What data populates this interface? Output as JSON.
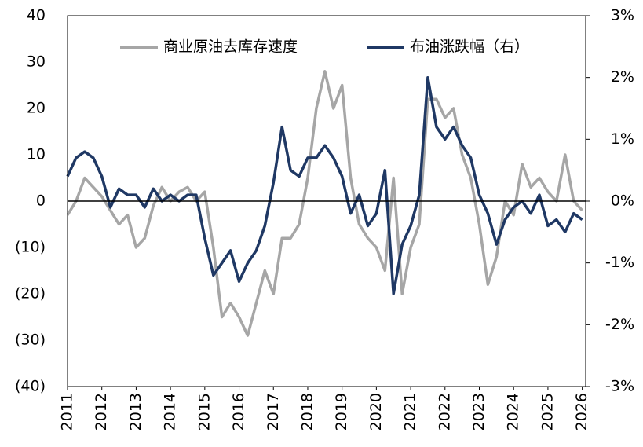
{
  "chart_data": {
    "type": "line",
    "x": [
      2011,
      2011.25,
      2011.5,
      2011.75,
      2012,
      2012.25,
      2012.5,
      2012.75,
      2013,
      2013.25,
      2013.5,
      2013.75,
      2014,
      2014.25,
      2014.5,
      2014.75,
      2015,
      2015.25,
      2015.5,
      2015.75,
      2016,
      2016.25,
      2016.5,
      2016.75,
      2017,
      2017.25,
      2017.5,
      2017.75,
      2018,
      2018.25,
      2018.5,
      2018.75,
      2019,
      2019.25,
      2019.5,
      2019.75,
      2020,
      2020.25,
      2020.5,
      2020.75,
      2021,
      2021.25,
      2021.5,
      2021.75,
      2022,
      2022.25,
      2022.5,
      2022.75,
      2023,
      2023.25,
      2023.5,
      2023.75,
      2024,
      2024.25,
      2024.5,
      2024.75,
      2025,
      2025.25,
      2025.5,
      2025.75,
      2026
    ],
    "series": [
      {
        "name": "商业原油去库存速度",
        "color": "#a6a6a6",
        "axis": "y",
        "values": [
          -3,
          0,
          5,
          3,
          1,
          -2,
          -5,
          -3,
          -10,
          -8,
          -1,
          3,
          0,
          2,
          3,
          0,
          2,
          -10,
          -25,
          -22,
          -25,
          -29,
          -22,
          -15,
          -20,
          -8,
          -8,
          -5,
          5,
          20,
          28,
          20,
          25,
          5,
          -5,
          -8,
          -10,
          -15,
          5,
          -20,
          -10,
          -5,
          22,
          22,
          18,
          20,
          10,
          5,
          -5,
          -18,
          -12,
          0,
          -3,
          8,
          3,
          5,
          2,
          0,
          10,
          0,
          -2
        ]
      },
      {
        "name": "布油涨跌幅（右）",
        "color": "#1f3864",
        "axis": "y2",
        "values": [
          0.4,
          0.7,
          0.8,
          0.7,
          0.4,
          -0.1,
          0.2,
          0.1,
          0.1,
          -0.1,
          0.2,
          0,
          0.1,
          0,
          0.1,
          0.1,
          -0.6,
          -1.2,
          -1,
          -0.8,
          -1.3,
          -1,
          -0.8,
          -0.4,
          0.3,
          1.2,
          0.5,
          0.4,
          0.7,
          0.7,
          0.9,
          0.7,
          0.4,
          -0.2,
          0.1,
          -0.4,
          -0.2,
          0.5,
          -1.5,
          -0.7,
          -0.4,
          0.1,
          2,
          1.2,
          1,
          1.2,
          0.9,
          0.7,
          0.1,
          -0.2,
          -0.7,
          -0.3,
          -0.1,
          0,
          -0.2,
          0.1,
          -0.4,
          -0.3,
          -0.5,
          -0.2,
          -0.3
        ]
      }
    ],
    "xlim": [
      2011,
      2026.1
    ],
    "xticks": [
      2011,
      2012,
      2013,
      2014,
      2015,
      2016,
      2017,
      2018,
      2019,
      2020,
      2021,
      2022,
      2023,
      2024,
      2025,
      2026
    ],
    "ylim": [
      -40,
      40
    ],
    "yticks": [
      {
        "value": -40,
        "label": "(40)"
      },
      {
        "value": -30,
        "label": "(30)"
      },
      {
        "value": -20,
        "label": "(20)"
      },
      {
        "value": -10,
        "label": "(10)"
      },
      0,
      10,
      20,
      30,
      40
    ],
    "negative_tick_color": "#ff0000",
    "y2lim": [
      -3,
      3
    ],
    "y2ticks": [
      {
        "value": -3,
        "label": "-3%"
      },
      {
        "value": -2,
        "label": "-2%"
      },
      {
        "value": -1,
        "label": "-1%"
      },
      {
        "value": 0,
        "label": "0%"
      },
      {
        "value": 1,
        "label": "1%"
      },
      {
        "value": 2,
        "label": "2%"
      },
      {
        "value": 3,
        "label": "3%"
      }
    ],
    "legend": "top"
  }
}
